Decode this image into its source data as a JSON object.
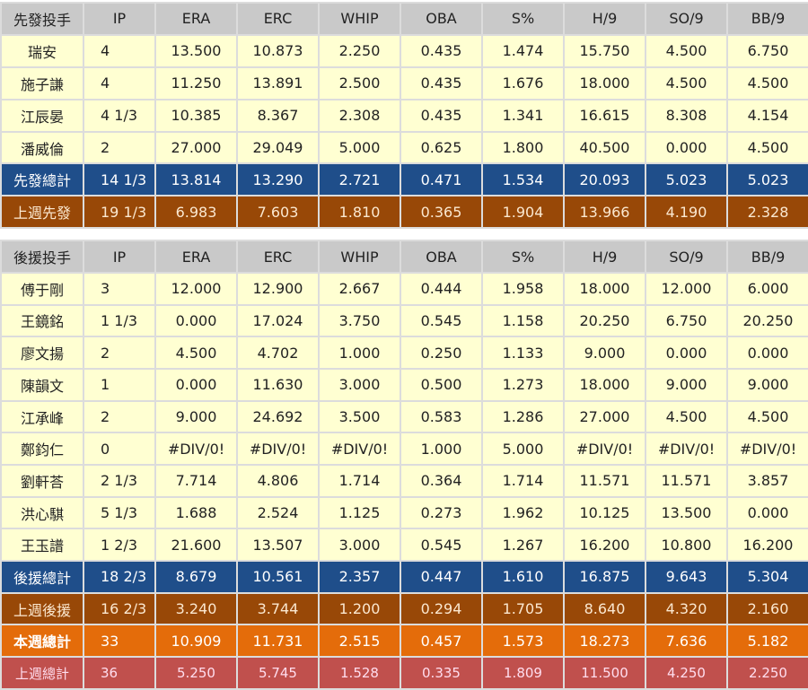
{
  "columns": [
    "IP",
    "ERA",
    "ERC",
    "WHIP",
    "OBA",
    "S%",
    "H/9",
    "SO/9",
    "BB/9"
  ],
  "colors": {
    "header": "#c9c9c9",
    "player": "#ffffd2",
    "subtotal": "#1f4e8a",
    "last_week_group": "#984807",
    "week_total": "#e46c0a",
    "last_week_total": "#c0504d"
  },
  "starters": {
    "title": "先發投手",
    "rows": [
      {
        "type": "player",
        "name": "瑞安",
        "values": [
          "4",
          "13.500",
          "10.873",
          "2.250",
          "0.435",
          "1.474",
          "15.750",
          "4.500",
          "6.750"
        ]
      },
      {
        "type": "player",
        "name": "施子謙",
        "values": [
          "4",
          "11.250",
          "13.891",
          "2.500",
          "0.435",
          "1.676",
          "18.000",
          "4.500",
          "4.500"
        ]
      },
      {
        "type": "player",
        "name": "江辰晏",
        "values": [
          "4 1/3",
          "10.385",
          "8.367",
          "2.308",
          "0.435",
          "1.341",
          "16.615",
          "8.308",
          "4.154"
        ]
      },
      {
        "type": "player",
        "name": "潘威倫",
        "values": [
          "2",
          "27.000",
          "29.049",
          "5.000",
          "0.625",
          "1.800",
          "40.500",
          "0.000",
          "4.500"
        ]
      },
      {
        "type": "blue",
        "name": "先發總計",
        "values": [
          "14 1/3",
          "13.814",
          "13.290",
          "2.721",
          "0.471",
          "1.534",
          "20.093",
          "5.023",
          "5.023"
        ]
      },
      {
        "type": "brown",
        "name": "上週先發",
        "values": [
          "19 1/3",
          "6.983",
          "7.603",
          "1.810",
          "0.365",
          "1.904",
          "13.966",
          "4.190",
          "2.328"
        ]
      }
    ]
  },
  "relievers": {
    "title": "後援投手",
    "rows": [
      {
        "type": "player",
        "name": "傅于剛",
        "values": [
          "3",
          "12.000",
          "12.900",
          "2.667",
          "0.444",
          "1.958",
          "18.000",
          "12.000",
          "6.000"
        ]
      },
      {
        "type": "player",
        "name": "王鏡銘",
        "values": [
          "1 1/3",
          "0.000",
          "17.024",
          "3.750",
          "0.545",
          "1.158",
          "20.250",
          "6.750",
          "20.250"
        ]
      },
      {
        "type": "player",
        "name": "廖文揚",
        "values": [
          "2",
          "4.500",
          "4.702",
          "1.000",
          "0.250",
          "1.133",
          "9.000",
          "0.000",
          "0.000"
        ]
      },
      {
        "type": "player",
        "name": "陳韻文",
        "values": [
          "1",
          "0.000",
          "11.630",
          "3.000",
          "0.500",
          "1.273",
          "18.000",
          "9.000",
          "9.000"
        ]
      },
      {
        "type": "player",
        "name": "江承峰",
        "values": [
          "2",
          "9.000",
          "24.692",
          "3.500",
          "0.583",
          "1.286",
          "27.000",
          "4.500",
          "4.500"
        ]
      },
      {
        "type": "player",
        "name": "鄭鈞仁",
        "values": [
          "0",
          "#DIV/0!",
          "#DIV/0!",
          "#DIV/0!",
          "1.000",
          "5.000",
          "#DIV/0!",
          "#DIV/0!",
          "#DIV/0!"
        ]
      },
      {
        "type": "player",
        "name": "劉軒荅",
        "values": [
          "2 1/3",
          "7.714",
          "4.806",
          "1.714",
          "0.364",
          "1.714",
          "11.571",
          "11.571",
          "3.857"
        ]
      },
      {
        "type": "player",
        "name": "洪心騏",
        "values": [
          "5 1/3",
          "1.688",
          "2.524",
          "1.125",
          "0.273",
          "1.962",
          "10.125",
          "13.500",
          "0.000"
        ]
      },
      {
        "type": "player",
        "name": "王玉譜",
        "values": [
          "1 2/3",
          "21.600",
          "13.507",
          "3.000",
          "0.545",
          "1.267",
          "16.200",
          "10.800",
          "16.200"
        ]
      },
      {
        "type": "blue",
        "name": "後援總計",
        "values": [
          "18 2/3",
          "8.679",
          "10.561",
          "2.357",
          "0.447",
          "1.610",
          "16.875",
          "9.643",
          "5.304"
        ]
      },
      {
        "type": "brown",
        "name": "上週後援",
        "values": [
          "16 2/3",
          "3.240",
          "3.744",
          "1.200",
          "0.294",
          "1.705",
          "8.640",
          "4.320",
          "2.160"
        ]
      },
      {
        "type": "orange",
        "name": "本週總計",
        "values": [
          "33",
          "10.909",
          "11.731",
          "2.515",
          "0.457",
          "1.573",
          "18.273",
          "7.636",
          "5.182"
        ]
      },
      {
        "type": "red",
        "name": "上週總計",
        "values": [
          "36",
          "5.250",
          "5.745",
          "1.528",
          "0.335",
          "1.809",
          "11.500",
          "4.250",
          "2.250"
        ]
      }
    ]
  }
}
